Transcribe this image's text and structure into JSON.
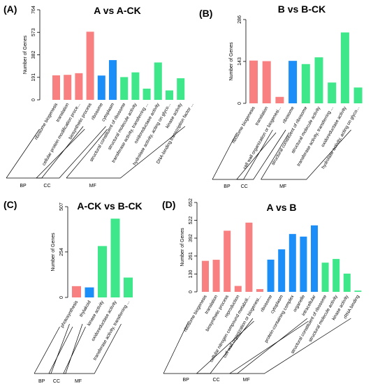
{
  "colors": {
    "BP": "#f98080",
    "CC": "#1b8ef8",
    "MF": "#3ee88a",
    "axis": "#000000",
    "text": "#000000"
  },
  "chart_data": [
    {
      "panel": "(A)",
      "title": "A vs A-CK",
      "type": "bar",
      "ylabel": "Number of Genes",
      "yticks": [
        0,
        191,
        382,
        573,
        764
      ],
      "ylim": [
        0,
        764
      ],
      "categories": [
        "ribosome biogenesis",
        "translation",
        "cellular protein modification proce...",
        "biosynthetic process",
        "ribosome",
        "cytoplasm",
        "structural constituent of ribosome",
        "structural molecule activity",
        "transferase activity, transferring ...",
        "oxidoreductase activity",
        "hydrolase activity, acting on glyco...",
        "kinase activity",
        "DNA-binding transcription factor ..."
      ],
      "groups": [
        "BP",
        "BP",
        "BP",
        "BP",
        "CC",
        "CC",
        "MF",
        "MF",
        "MF",
        "MF",
        "MF",
        "MF",
        "MF"
      ],
      "values": [
        208,
        212,
        226,
        578,
        206,
        337,
        193,
        233,
        95,
        317,
        80,
        183,
        0
      ],
      "group_labels": {
        "BP": "BP",
        "CC": "CC",
        "MF": "MF"
      }
    },
    {
      "panel": "(B)",
      "title": "B vs B-CK",
      "type": "bar",
      "ylabel": "Number of Genes",
      "yticks": [
        0,
        143,
        286
      ],
      "ylim": [
        0,
        286
      ],
      "categories": [
        "ribosome biogenesis",
        "translation",
        "cell wall organization or biogenesi...",
        "ribosome",
        "structural constituent of ribosome",
        "structural molecule activity",
        "transferase activity, transferring ...",
        "oxidoreductase activity",
        "hydrolase activity, acting on glyco..."
      ],
      "groups": [
        "BP",
        "BP",
        "BP",
        "CC",
        "MF",
        "MF",
        "MF",
        "MF",
        "MF"
      ],
      "values": [
        146,
        144,
        22,
        145,
        134,
        157,
        71,
        242,
        54
      ],
      "group_labels": {
        "BP": "BP",
        "CC": "CC",
        "MF": "MF"
      }
    },
    {
      "panel": "(C)",
      "title": "A-CK vs B-CK",
      "type": "bar",
      "ylabel": "Number of Genes",
      "yticks": [
        0,
        254,
        507
      ],
      "ylim": [
        0,
        507
      ],
      "categories": [
        "photosynthesis",
        "thylakoid",
        "kinase activity",
        "oxidoreductase activity",
        "transferase activity, transferring ..."
      ],
      "groups": [
        "BP",
        "CC",
        "MF",
        "MF",
        "MF"
      ],
      "values": [
        63,
        56,
        287,
        440,
        111
      ],
      "group_labels": {
        "BP": "BP",
        "CC": "CC",
        "MF": "MF"
      }
    },
    {
      "panel": "(D)",
      "title": "A vs B",
      "type": "bar",
      "ylabel": "Number of Genes",
      "yticks": [
        0,
        130,
        261,
        392,
        522,
        652
      ],
      "ylim": [
        0,
        652
      ],
      "categories": [
        "ribosome biogenesis",
        "translation",
        "biosynthetic process",
        "reproduction",
        "cellular nitrogen compound metaboli...",
        "cell wall organization or biogenesi...",
        "ribosome",
        "cytoplasm",
        "protein-containing complex",
        "organelle",
        "intracellular",
        "structural constituent of ribosome",
        "structural molecule activity",
        "kinase activity",
        "rRNA binding"
      ],
      "groups": [
        "BP",
        "BP",
        "BP",
        "BP",
        "BP",
        "BP",
        "CC",
        "CC",
        "CC",
        "CC",
        "CC",
        "MF",
        "MF",
        "MF",
        "MF"
      ],
      "values": [
        226,
        234,
        446,
        43,
        505,
        20,
        235,
        310,
        422,
        403,
        485,
        213,
        240,
        133,
        9
      ],
      "group_labels": {
        "BP": "BP",
        "CC": "CC",
        "MF": "MF"
      }
    }
  ]
}
